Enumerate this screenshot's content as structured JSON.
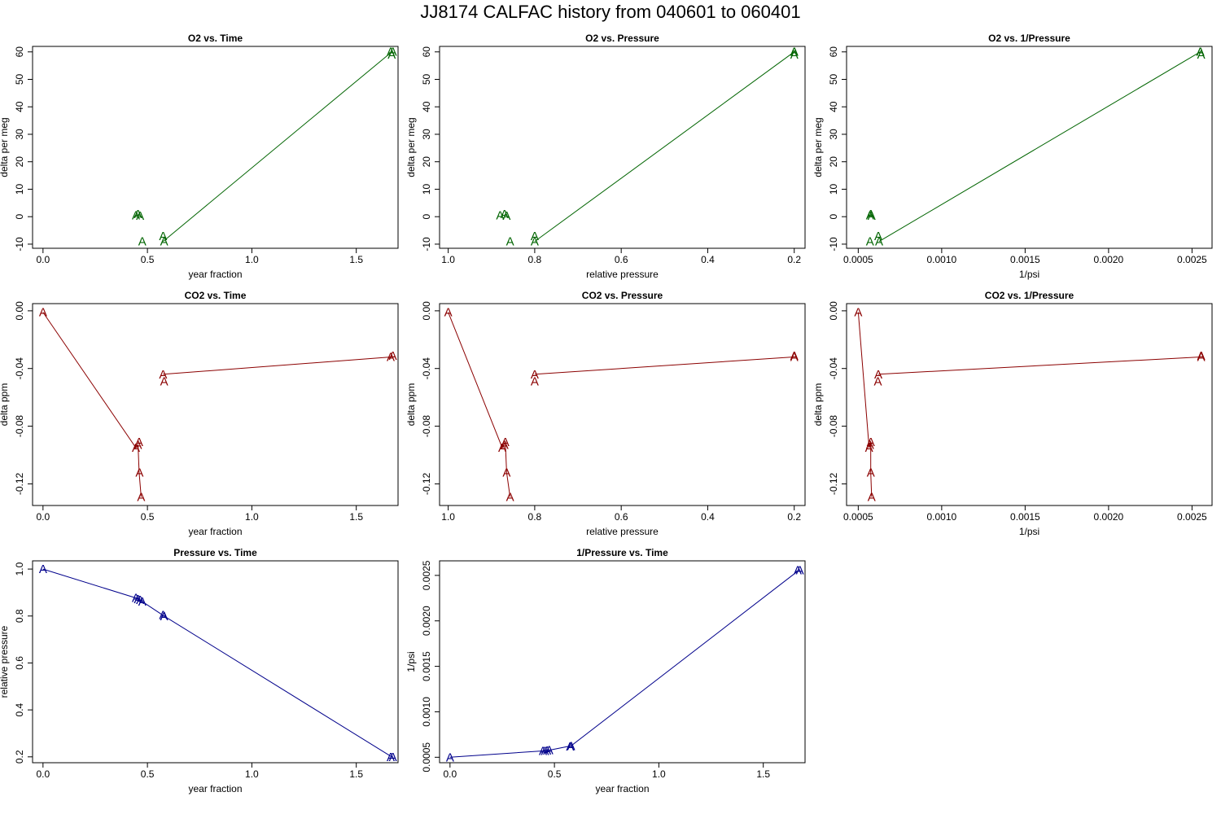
{
  "title": "JJ8174   CALFAC history from  040601  to  060401",
  "colors": {
    "o2": "#006400",
    "co2": "#8b0000",
    "press": "#00008b"
  },
  "marker": "A",
  "chart_data": [
    {
      "type": "line",
      "title": "O2 vs. Time",
      "xlabel": "year fraction",
      "ylabel": "delta per meg",
      "xlim": [
        -0.05,
        1.7
      ],
      "ylim": [
        -11.5,
        62
      ],
      "xreverse": false,
      "xticks": [
        0.0,
        0.5,
        1.0,
        1.5
      ],
      "xtick_labels": [
        "0.0",
        "0.5",
        "1.0",
        "1.5"
      ],
      "yticks": [
        -10,
        0,
        10,
        20,
        30,
        40,
        50,
        60
      ],
      "ytick_labels": [
        "-10",
        "0",
        "10",
        "20",
        "30",
        "40",
        "50",
        "60"
      ],
      "color_key": "o2",
      "points": [
        [
          0.445,
          0.5
        ],
        [
          0.455,
          1.0
        ],
        [
          0.465,
          0.3
        ],
        [
          0.475,
          -9
        ],
        [
          0.575,
          -7
        ],
        [
          0.58,
          -9
        ],
        [
          1.665,
          60
        ],
        [
          1.67,
          59
        ],
        [
          1.675,
          60
        ]
      ],
      "line": [
        [
          0.575,
          -9
        ],
        [
          1.67,
          60
        ]
      ]
    },
    {
      "type": "line",
      "title": "O2 vs. Pressure",
      "xlabel": "relative pressure",
      "ylabel": "delta per meg",
      "xlim": [
        1.02,
        0.175
      ],
      "ylim": [
        -11.5,
        62
      ],
      "xreverse": true,
      "xticks": [
        1.0,
        0.8,
        0.6,
        0.4,
        0.2
      ],
      "xtick_labels": [
        "1.0",
        "0.8",
        "0.6",
        "0.4",
        "0.2"
      ],
      "yticks": [
        -10,
        0,
        10,
        20,
        30,
        40,
        50,
        60
      ],
      "ytick_labels": [
        "-10",
        "0",
        "10",
        "20",
        "30",
        "40",
        "50",
        "60"
      ],
      "color_key": "o2",
      "points": [
        [
          0.88,
          0.5
        ],
        [
          0.87,
          1.0
        ],
        [
          0.865,
          0.3
        ],
        [
          0.857,
          -9
        ],
        [
          0.8,
          -7
        ],
        [
          0.8,
          -9
        ],
        [
          0.2,
          60
        ],
        [
          0.2,
          59
        ],
        [
          0.2,
          60
        ]
      ],
      "line": [
        [
          0.8,
          -9
        ],
        [
          0.2,
          60
        ]
      ]
    },
    {
      "type": "line",
      "title": "O2 vs. 1/Pressure",
      "xlabel": "1/psi",
      "ylabel": "delta per meg",
      "xlim": [
        0.00043,
        0.00262
      ],
      "ylim": [
        -11.5,
        62
      ],
      "xreverse": false,
      "xticks": [
        0.0005,
        0.001,
        0.0015,
        0.002,
        0.0025
      ],
      "xtick_labels": [
        "0.0005",
        "0.0010",
        "0.0015",
        "0.0020",
        "0.0025"
      ],
      "yticks": [
        -10,
        0,
        10,
        20,
        30,
        40,
        50,
        60
      ],
      "ytick_labels": [
        "-10",
        "0",
        "10",
        "20",
        "30",
        "40",
        "50",
        "60"
      ],
      "color_key": "o2",
      "points": [
        [
          0.00057,
          0.5
        ],
        [
          0.000575,
          1.0
        ],
        [
          0.00058,
          0.3
        ],
        [
          0.00057,
          -9
        ],
        [
          0.00062,
          -7
        ],
        [
          0.000625,
          -9
        ],
        [
          0.00255,
          60
        ],
        [
          0.002555,
          59
        ],
        [
          0.00255,
          60
        ]
      ],
      "line": [
        [
          0.000625,
          -9
        ],
        [
          0.00255,
          60
        ]
      ]
    },
    {
      "type": "line",
      "title": "CO2 vs. Time",
      "xlabel": "year fraction",
      "ylabel": "delta ppm",
      "xlim": [
        -0.05,
        1.7
      ],
      "ylim": [
        -0.135,
        0.005
      ],
      "xreverse": false,
      "xticks": [
        0.0,
        0.5,
        1.0,
        1.5
      ],
      "xtick_labels": [
        "0.0",
        "0.5",
        "1.0",
        "1.5"
      ],
      "yticks": [
        -0.12,
        -0.08,
        -0.04,
        0.0
      ],
      "ytick_labels": [
        "-0.12",
        "-0.08",
        "-0.04",
        "0.00"
      ],
      "color_key": "co2",
      "points": [
        [
          0.0,
          -0.001
        ],
        [
          0.445,
          -0.095
        ],
        [
          0.455,
          -0.093
        ],
        [
          0.46,
          -0.091
        ],
        [
          0.462,
          -0.112
        ],
        [
          0.47,
          -0.129
        ],
        [
          0.575,
          -0.044
        ],
        [
          0.58,
          -0.049
        ],
        [
          1.665,
          -0.032
        ],
        [
          1.675,
          -0.031
        ]
      ],
      "line": [
        [
          0.0,
          -0.001
        ],
        [
          0.445,
          -0.095
        ],
        [
          0.455,
          -0.093
        ],
        [
          0.46,
          -0.112
        ],
        [
          0.47,
          -0.129
        ],
        null,
        [
          0.575,
          -0.044
        ],
        [
          1.67,
          -0.032
        ]
      ]
    },
    {
      "type": "line",
      "title": "CO2 vs. Pressure",
      "xlabel": "relative pressure",
      "ylabel": "delta ppm",
      "xlim": [
        1.02,
        0.175
      ],
      "ylim": [
        -0.135,
        0.005
      ],
      "xreverse": true,
      "xticks": [
        1.0,
        0.8,
        0.6,
        0.4,
        0.2
      ],
      "xtick_labels": [
        "1.0",
        "0.8",
        "0.6",
        "0.4",
        "0.2"
      ],
      "yticks": [
        -0.12,
        -0.08,
        -0.04,
        0.0
      ],
      "ytick_labels": [
        "-0.12",
        "-0.08",
        "-0.04",
        "0.00"
      ],
      "color_key": "co2",
      "points": [
        [
          1.0,
          -0.001
        ],
        [
          0.875,
          -0.095
        ],
        [
          0.87,
          -0.093
        ],
        [
          0.868,
          -0.091
        ],
        [
          0.865,
          -0.112
        ],
        [
          0.857,
          -0.129
        ],
        [
          0.8,
          -0.044
        ],
        [
          0.8,
          -0.049
        ],
        [
          0.2,
          -0.032
        ],
        [
          0.2,
          -0.031
        ]
      ],
      "line": [
        [
          1.0,
          -0.001
        ],
        [
          0.875,
          -0.095
        ],
        [
          0.868,
          -0.091
        ],
        [
          0.865,
          -0.112
        ],
        [
          0.857,
          -0.129
        ],
        null,
        [
          0.8,
          -0.044
        ],
        [
          0.2,
          -0.032
        ]
      ]
    },
    {
      "type": "line",
      "title": "CO2 vs. 1/Pressure",
      "xlabel": "1/psi",
      "ylabel": "delta ppm",
      "xlim": [
        0.00043,
        0.00262
      ],
      "ylim": [
        -0.135,
        0.005
      ],
      "xreverse": false,
      "xticks": [
        0.0005,
        0.001,
        0.0015,
        0.002,
        0.0025
      ],
      "xtick_labels": [
        "0.0005",
        "0.0010",
        "0.0015",
        "0.0020",
        "0.0025"
      ],
      "yticks": [
        -0.12,
        -0.08,
        -0.04,
        0.0
      ],
      "ytick_labels": [
        "-0.12",
        "-0.08",
        "-0.04",
        "0.00"
      ],
      "color_key": "co2",
      "points": [
        [
          0.0005,
          -0.001
        ],
        [
          0.000565,
          -0.095
        ],
        [
          0.00057,
          -0.093
        ],
        [
          0.000575,
          -0.091
        ],
        [
          0.000575,
          -0.112
        ],
        [
          0.00058,
          -0.129
        ],
        [
          0.00062,
          -0.044
        ],
        [
          0.000618,
          -0.049
        ],
        [
          0.002555,
          -0.032
        ],
        [
          0.002555,
          -0.031
        ]
      ],
      "line": [
        [
          0.0005,
          -0.001
        ],
        [
          0.000565,
          -0.095
        ],
        [
          0.000575,
          -0.091
        ],
        [
          0.000575,
          -0.112
        ],
        [
          0.00058,
          -0.129
        ],
        null,
        [
          0.00062,
          -0.044
        ],
        [
          0.002555,
          -0.032
        ]
      ]
    },
    {
      "type": "line",
      "title": "Pressure vs. Time",
      "xlabel": "year fraction",
      "ylabel": "relative pressure",
      "xlim": [
        -0.05,
        1.7
      ],
      "ylim": [
        0.175,
        1.035
      ],
      "xreverse": false,
      "xticks": [
        0.0,
        0.5,
        1.0,
        1.5
      ],
      "xtick_labels": [
        "0.0",
        "0.5",
        "1.0",
        "1.5"
      ],
      "yticks": [
        0.2,
        0.4,
        0.6,
        0.8,
        1.0
      ],
      "ytick_labels": [
        "0.2",
        "0.4",
        "0.6",
        "0.8",
        "1.0"
      ],
      "color_key": "press",
      "points": [
        [
          0.0,
          1.0
        ],
        [
          0.445,
          0.877
        ],
        [
          0.455,
          0.872
        ],
        [
          0.465,
          0.868
        ],
        [
          0.475,
          0.862
        ],
        [
          0.575,
          0.805
        ],
        [
          0.58,
          0.8
        ],
        [
          1.665,
          0.2
        ],
        [
          1.675,
          0.2
        ]
      ],
      "line": [
        [
          0.0,
          1.0
        ],
        [
          0.445,
          0.877
        ],
        [
          0.475,
          0.862
        ],
        [
          0.58,
          0.8
        ],
        [
          1.67,
          0.2
        ]
      ]
    },
    {
      "type": "line",
      "title": "1/Pressure vs. Time",
      "xlabel": "year fraction",
      "ylabel": "1/psi",
      "xlim": [
        -0.05,
        1.7
      ],
      "ylim": [
        0.00044,
        0.00266
      ],
      "xreverse": false,
      "xticks": [
        0.0,
        0.5,
        1.0,
        1.5
      ],
      "xtick_labels": [
        "0.0",
        "0.5",
        "1.0",
        "1.5"
      ],
      "yticks": [
        0.0005,
        0.001,
        0.0015,
        0.002,
        0.0025
      ],
      "ytick_labels": [
        "0.0005",
        "0.0010",
        "0.0015",
        "0.0020",
        "0.0025"
      ],
      "color_key": "press",
      "points": [
        [
          0.0,
          0.0005
        ],
        [
          0.445,
          0.00057
        ],
        [
          0.455,
          0.000572
        ],
        [
          0.465,
          0.000575
        ],
        [
          0.475,
          0.000578
        ],
        [
          0.575,
          0.000618
        ],
        [
          0.58,
          0.000625
        ],
        [
          1.665,
          0.002555
        ],
        [
          1.675,
          0.002555
        ]
      ],
      "line": [
        [
          0.0,
          0.0005
        ],
        [
          0.445,
          0.00057
        ],
        [
          0.475,
          0.000578
        ],
        [
          0.58,
          0.000625
        ],
        [
          1.67,
          0.002555
        ]
      ]
    }
  ]
}
